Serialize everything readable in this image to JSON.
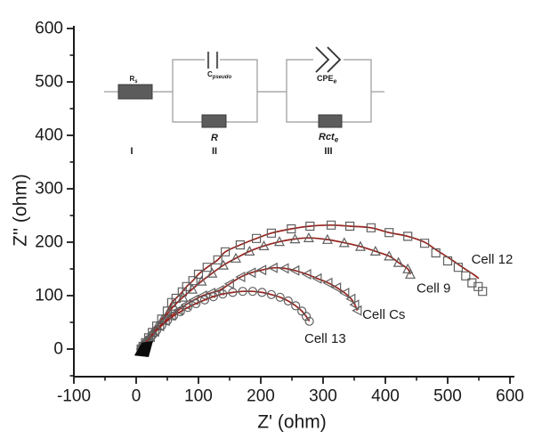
{
  "chart_data": {
    "type": "scatter",
    "description": "Nyquist electrochemical impedance plot with four measured cells (hollow markers) and dark-red equivalent-circuit fit lines; inset shows the equivalent circuit model",
    "title": "",
    "xlabel": "Z' (ohm)",
    "ylabel": "Z'' (ohm)",
    "grid": false,
    "legend_position": "inline annotations beside each curve",
    "x_axis": {
      "min": -100,
      "max": 610,
      "major_ticks": [
        -100,
        0,
        100,
        200,
        300,
        400,
        500,
        600
      ],
      "major_tick_labels": [
        "-100",
        "0",
        "100",
        "200",
        "300",
        "400",
        "500",
        "600"
      ],
      "minor_ticks": [
        -50,
        50,
        150,
        250,
        350,
        450,
        550
      ]
    },
    "y_axis": {
      "min": -50,
      "max": 605,
      "major_ticks": [
        0,
        100,
        200,
        300,
        400,
        500,
        600
      ],
      "major_tick_labels": [
        "0",
        "100",
        "200",
        "300",
        "400",
        "500",
        "600"
      ],
      "minor_ticks": [
        -50,
        50,
        150,
        250,
        350,
        450,
        550
      ]
    },
    "colors": {
      "axis": "#1a1a1a",
      "fit_line": "#96241e",
      "marker": "#5f5f5f",
      "annotation_text": "#1a1a1a"
    },
    "series": [
      {
        "name": "Cell 12",
        "marker": "square",
        "label_pos": [
          538,
          160
        ],
        "points": [
          [
            8,
            0
          ],
          [
            11,
            5
          ],
          [
            15,
            12
          ],
          [
            20,
            21
          ],
          [
            26,
            31
          ],
          [
            33,
            43
          ],
          [
            41,
            56
          ],
          [
            50,
            71
          ],
          [
            57,
            87
          ],
          [
            64,
            95
          ],
          [
            74,
            107
          ],
          [
            81,
            117
          ],
          [
            91,
            128
          ],
          [
            100,
            140
          ],
          [
            114,
            153
          ],
          [
            131,
            167
          ],
          [
            143,
            182
          ],
          [
            167,
            195
          ],
          [
            193,
            207
          ],
          [
            217,
            217
          ],
          [
            249,
            225
          ],
          [
            279,
            230
          ],
          [
            313,
            232
          ],
          [
            343,
            230
          ],
          [
            377,
            227
          ],
          [
            406,
            218
          ],
          [
            436,
            211
          ],
          [
            463,
            198
          ],
          [
            481,
            180
          ],
          [
            500,
            165
          ],
          [
            517,
            153
          ],
          [
            529,
            137
          ],
          [
            539,
            124
          ],
          [
            549,
            117
          ],
          [
            556,
            108
          ]
        ],
        "fit_points": [
          [
            8,
            0
          ],
          [
            11,
            5
          ],
          [
            15,
            12
          ],
          [
            20,
            21
          ],
          [
            26,
            31
          ],
          [
            33,
            43
          ],
          [
            41,
            56
          ],
          [
            50,
            71
          ],
          [
            57,
            87
          ],
          [
            64,
            95
          ],
          [
            74,
            107
          ],
          [
            81,
            117
          ],
          [
            91,
            128
          ],
          [
            100,
            140
          ],
          [
            114,
            153
          ],
          [
            131,
            167
          ],
          [
            143,
            182
          ],
          [
            167,
            195
          ],
          [
            193,
            207
          ],
          [
            217,
            217
          ],
          [
            249,
            225
          ],
          [
            279,
            230
          ],
          [
            313,
            232
          ],
          [
            343,
            230
          ],
          [
            377,
            227
          ],
          [
            406,
            218
          ],
          [
            436,
            211
          ],
          [
            463,
            200
          ],
          [
            481,
            186
          ],
          [
            500,
            172
          ],
          [
            514,
            161
          ],
          [
            529,
            149
          ],
          [
            541,
            140
          ],
          [
            550,
            132
          ]
        ]
      },
      {
        "name": "Cell 9",
        "marker": "triangle-up",
        "label_pos": [
          450,
          106
        ],
        "points": [
          [
            8,
            0
          ],
          [
            12,
            6
          ],
          [
            16,
            13
          ],
          [
            21,
            22
          ],
          [
            27,
            32
          ],
          [
            34,
            43
          ],
          [
            42,
            55
          ],
          [
            51,
            67
          ],
          [
            60,
            80
          ],
          [
            75,
            97
          ],
          [
            90,
            112
          ],
          [
            105,
            127
          ],
          [
            122,
            142
          ],
          [
            140,
            157
          ],
          [
            160,
            170
          ],
          [
            182,
            183
          ],
          [
            205,
            193
          ],
          [
            230,
            201
          ],
          [
            255,
            206
          ],
          [
            277,
            208
          ],
          [
            307,
            205
          ],
          [
            334,
            199
          ],
          [
            360,
            192
          ],
          [
            384,
            183
          ],
          [
            406,
            174
          ],
          [
            421,
            162
          ],
          [
            436,
            150
          ],
          [
            440,
            140
          ]
        ]
      },
      {
        "name": "Cell Cs",
        "marker": "triangle-left",
        "label_pos": [
          363,
          57
        ],
        "points": [
          [
            8,
            0
          ],
          [
            12,
            6
          ],
          [
            17,
            14
          ],
          [
            23,
            23
          ],
          [
            30,
            33
          ],
          [
            38,
            43
          ],
          [
            47,
            53
          ],
          [
            57,
            63
          ],
          [
            68,
            73
          ],
          [
            80,
            83
          ],
          [
            93,
            92
          ],
          [
            107,
            100
          ],
          [
            120,
            105
          ],
          [
            134,
            110
          ],
          [
            150,
            122
          ],
          [
            168,
            135
          ],
          [
            185,
            143
          ],
          [
            202,
            148
          ],
          [
            220,
            152
          ],
          [
            238,
            151
          ],
          [
            255,
            147
          ],
          [
            274,
            140
          ],
          [
            291,
            132
          ],
          [
            308,
            124
          ],
          [
            322,
            115
          ],
          [
            335,
            105
          ],
          [
            345,
            94
          ],
          [
            351,
            83
          ],
          [
            355,
            72
          ]
        ]
      },
      {
        "name": "Cell 13",
        "marker": "circle",
        "label_pos": [
          270,
          12
        ],
        "points": [
          [
            8,
            0
          ],
          [
            11,
            5
          ],
          [
            15,
            11
          ],
          [
            20,
            18
          ],
          [
            26,
            26
          ],
          [
            33,
            35
          ],
          [
            41,
            44
          ],
          [
            50,
            53
          ],
          [
            60,
            62
          ],
          [
            71,
            70
          ],
          [
            83,
            78
          ],
          [
            96,
            85
          ],
          [
            110,
            92
          ],
          [
            124,
            98
          ],
          [
            139,
            103
          ],
          [
            155,
            106
          ],
          [
            171,
            108
          ],
          [
            187,
            108
          ],
          [
            202,
            106
          ],
          [
            217,
            102
          ],
          [
            231,
            97
          ],
          [
            244,
            90
          ],
          [
            256,
            81
          ],
          [
            266,
            71
          ],
          [
            273,
            61
          ],
          [
            278,
            52
          ]
        ]
      }
    ],
    "origin_cluster": {
      "note": "dense overlapping high-frequency data points near the origin",
      "polygon": [
        [
          -3,
          -12
        ],
        [
          9,
          12
        ],
        [
          27,
          15
        ],
        [
          20,
          -15
        ]
      ]
    }
  },
  "inset_circuit": {
    "description": "equivalent circuit: Rs in series with (Cpseudo || R) in series with (CPEe || Rcte)",
    "rs_main": "R",
    "rs_sub": "s",
    "c_main": "C",
    "c_sub": "pseudo",
    "r_label": "R",
    "cpe_main": "CPE",
    "cpe_sub": "e",
    "rct_main": "Rct",
    "rct_sub": "e",
    "numerals": [
      "I",
      "II",
      "III"
    ]
  }
}
